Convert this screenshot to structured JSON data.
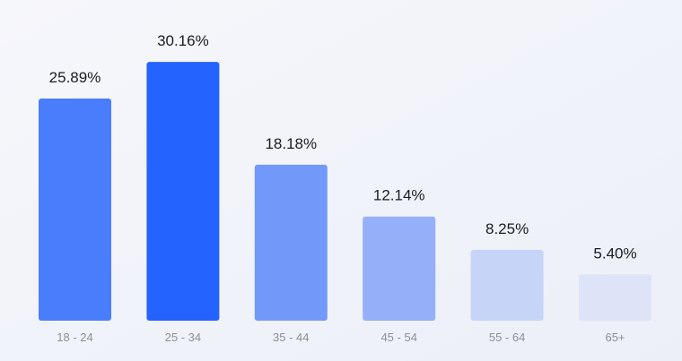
{
  "chart_data": {
    "type": "bar",
    "categories": [
      "18 - 24",
      "25 - 34",
      "35 - 44",
      "45 - 54",
      "55 - 64",
      "65+"
    ],
    "values": [
      25.89,
      30.16,
      18.18,
      12.14,
      8.25,
      5.4
    ],
    "value_labels": [
      "25.89%",
      "30.16%",
      "18.18%",
      "12.14%",
      "8.25%",
      "5.40%"
    ],
    "colors": [
      "#4a7dfb",
      "#2563ff",
      "#7299fa",
      "#95aff9",
      "#c6d4f8",
      "#dde4f7"
    ]
  }
}
